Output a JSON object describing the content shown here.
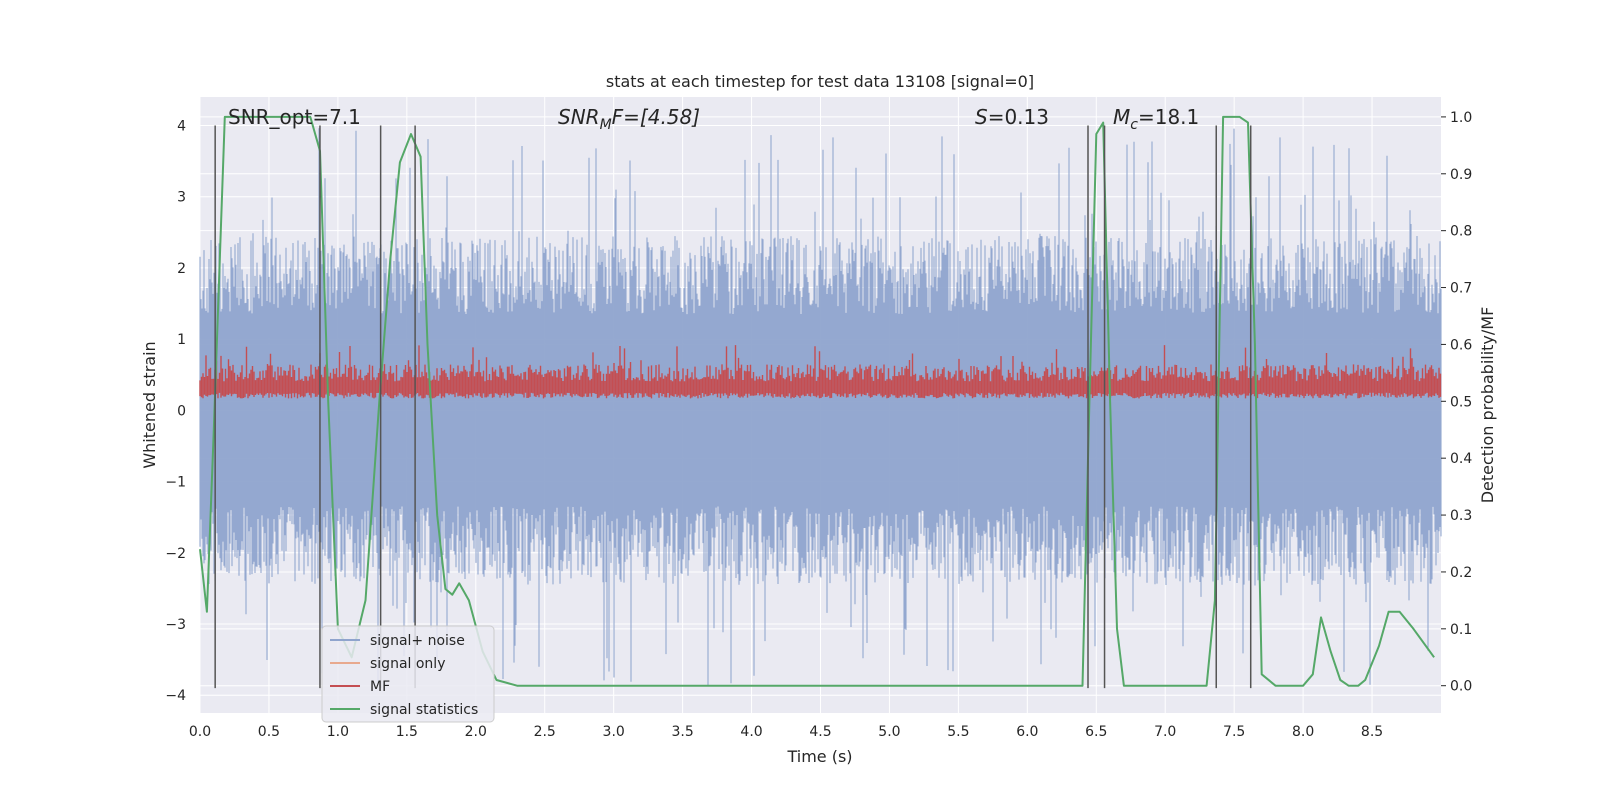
{
  "chart_data": {
    "type": "line",
    "title": "stats at each timestep for test data 13108 [signal=0]",
    "xlabel": "Time (s)",
    "ylabel": "Whitened strain",
    "y2label": "Detection probability/MF",
    "xlim": [
      0.0,
      9.0
    ],
    "ylim": [
      -4.25,
      4.4
    ],
    "y2lim": [
      -0.048,
      1.035
    ],
    "xticks": [
      0.0,
      0.5,
      1.0,
      1.5,
      2.0,
      2.5,
      3.0,
      3.5,
      4.0,
      4.5,
      5.0,
      5.5,
      6.0,
      6.5,
      7.0,
      7.5,
      8.0,
      8.5
    ],
    "yticks": [
      -4,
      -3,
      -2,
      -1,
      0,
      1,
      2,
      3,
      4
    ],
    "y2ticks": [
      0.0,
      0.1,
      0.2,
      0.3,
      0.4,
      0.5,
      0.6,
      0.7,
      0.8,
      0.9,
      1.0
    ],
    "annotations": {
      "snr_opt": "SNR_opt=7.1",
      "snr_mf_label": "SNR",
      "snr_mf_sub": "M",
      "snr_mf_rest": "F=[4.58]",
      "s_label": "S",
      "s_rest": "=0.13",
      "mc_label": "M",
      "mc_sub": "c",
      "mc_rest": "=18.1"
    },
    "series": [
      {
        "name": "signal+ noise",
        "color": "#8fa4cd",
        "axis": "left",
        "description": "whitened noise, amplitude mostly within ±2.5 with spikes to ±4",
        "amplitude": 2.0,
        "spike_max": 4.0
      },
      {
        "name": "signal only",
        "color": "#e8a98e",
        "axis": "left",
        "values_note": "flat at zero (signal=0)"
      },
      {
        "name": "MF",
        "color": "#c44e52",
        "axis": "right",
        "center": 0.52,
        "range": [
          0.5,
          0.6
        ]
      },
      {
        "name": "signal statistics",
        "color": "#55a868",
        "axis": "right",
        "x": [
          0.0,
          0.05,
          0.1,
          0.18,
          0.3,
          0.5,
          0.7,
          0.8,
          0.87,
          0.93,
          1.0,
          1.1,
          1.2,
          1.3,
          1.38,
          1.45,
          1.53,
          1.6,
          1.65,
          1.72,
          1.78,
          1.83,
          1.88,
          1.95,
          2.05,
          2.15,
          2.3,
          3.0,
          3.5,
          4.5,
          5.5,
          6.2,
          6.4,
          6.45,
          6.5,
          6.55,
          6.6,
          6.65,
          6.7,
          7.0,
          7.3,
          7.36,
          7.42,
          7.48,
          7.54,
          7.6,
          7.65,
          7.7,
          7.8,
          8.0,
          8.07,
          8.13,
          8.2,
          8.27,
          8.33,
          8.4,
          8.45,
          8.55,
          8.62,
          8.7,
          8.8,
          8.95
        ],
        "y": [
          0.24,
          0.13,
          0.45,
          1.0,
          1.0,
          1.0,
          1.0,
          1.0,
          0.94,
          0.5,
          0.1,
          0.05,
          0.15,
          0.5,
          0.75,
          0.92,
          0.97,
          0.93,
          0.6,
          0.3,
          0.17,
          0.16,
          0.18,
          0.15,
          0.06,
          0.01,
          0.0,
          0.0,
          0.0,
          0.0,
          0.0,
          0.0,
          0.0,
          0.5,
          0.97,
          0.99,
          0.5,
          0.1,
          0.0,
          0.0,
          0.0,
          0.15,
          1.0,
          1.0,
          1.0,
          0.99,
          0.6,
          0.02,
          0.0,
          0.0,
          0.02,
          0.12,
          0.06,
          0.01,
          0.0,
          0.0,
          0.01,
          0.07,
          0.13,
          0.13,
          0.1,
          0.05
        ]
      },
      {
        "name": "event markers",
        "color": "#555555",
        "axis": "left",
        "x": [
          0.11,
          0.87,
          1.31,
          1.56,
          6.44,
          6.56,
          7.37,
          7.62
        ]
      }
    ],
    "legend": {
      "placement": "lower-left",
      "entries": [
        "signal+ noise",
        "signal only",
        "MF",
        "signal statistics"
      ]
    }
  }
}
